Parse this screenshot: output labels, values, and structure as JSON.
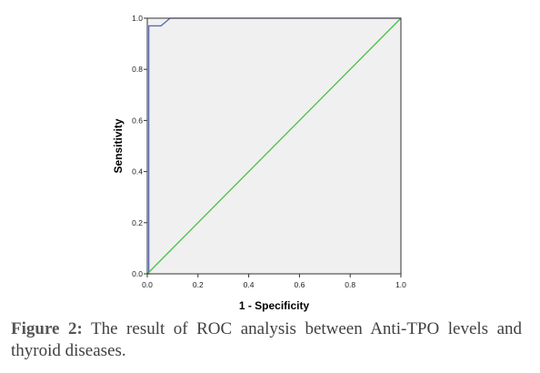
{
  "chart_data": {
    "type": "line",
    "xlabel": "1 - Specificity",
    "ylabel": "Sensitivity",
    "xlim": [
      0.0,
      1.0
    ],
    "ylim": [
      0.0,
      1.0
    ],
    "x_ticks": [
      "0.0",
      "0.2",
      "0.4",
      "0.6",
      "0.8",
      "1.0"
    ],
    "y_ticks": [
      "0.0",
      "0.2",
      "0.4",
      "0.6",
      "0.8",
      "1.0"
    ],
    "grid": false,
    "background": "#f0f0f0",
    "series": [
      {
        "color": "#5a6bb5",
        "points": [
          [
            0.0,
            0.0
          ],
          [
            0.0,
            0.0
          ],
          [
            0.006,
            0.0
          ],
          [
            0.006,
            0.97
          ],
          [
            0.054,
            0.97
          ],
          [
            0.09,
            1.0
          ],
          [
            1.0,
            1.0
          ]
        ]
      },
      {
        "color": "#4cbf4c",
        "points": [
          [
            0.0,
            0.0
          ],
          [
            1.0,
            1.0
          ]
        ]
      }
    ]
  },
  "caption": {
    "label": "Figure 2:",
    "text": " The result of ROC analysis between Anti-TPO levels and thyroid diseases."
  }
}
